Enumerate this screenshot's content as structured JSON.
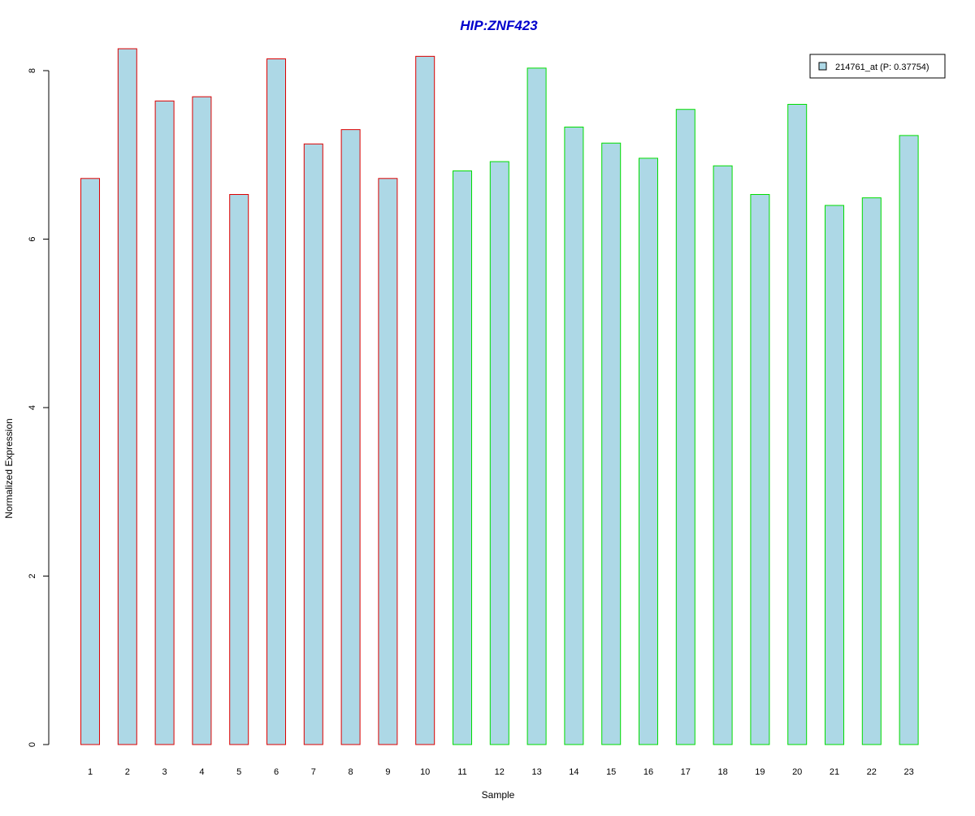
{
  "chart_data": {
    "type": "bar",
    "title": "HIP:ZNF423",
    "xlabel": "Sample",
    "ylabel": "Normalized Expression",
    "categories": [
      "1",
      "2",
      "3",
      "4",
      "5",
      "6",
      "7",
      "8",
      "9",
      "10",
      "11",
      "12",
      "13",
      "14",
      "15",
      "16",
      "17",
      "18",
      "19",
      "20",
      "21",
      "22",
      "23"
    ],
    "series": [
      {
        "name": "214761_at (P: 0.37754)",
        "values": [
          6.72,
          8.26,
          7.64,
          7.69,
          6.53,
          8.14,
          7.13,
          7.3,
          6.72,
          8.17,
          6.81,
          6.92,
          8.03,
          7.33,
          7.14,
          6.96,
          7.54,
          6.87,
          6.53,
          7.6,
          6.4,
          6.49,
          7.23
        ]
      }
    ],
    "groups": [
      "red",
      "red",
      "red",
      "red",
      "red",
      "red",
      "red",
      "red",
      "red",
      "red",
      "green",
      "green",
      "green",
      "green",
      "green",
      "green",
      "green",
      "green",
      "green",
      "green",
      "green",
      "green",
      "green"
    ],
    "ylim": [
      0,
      8.4
    ],
    "yticks": [
      0,
      2,
      4,
      6,
      8
    ],
    "grid": false,
    "legend_position": "top-right",
    "colors": {
      "title": "#0000CC",
      "bar_fill": "#ADD8E6",
      "group_red_border": "#DD0000",
      "group_green_border": "#00DD00",
      "axis": "#000000",
      "text": "#000000"
    }
  }
}
